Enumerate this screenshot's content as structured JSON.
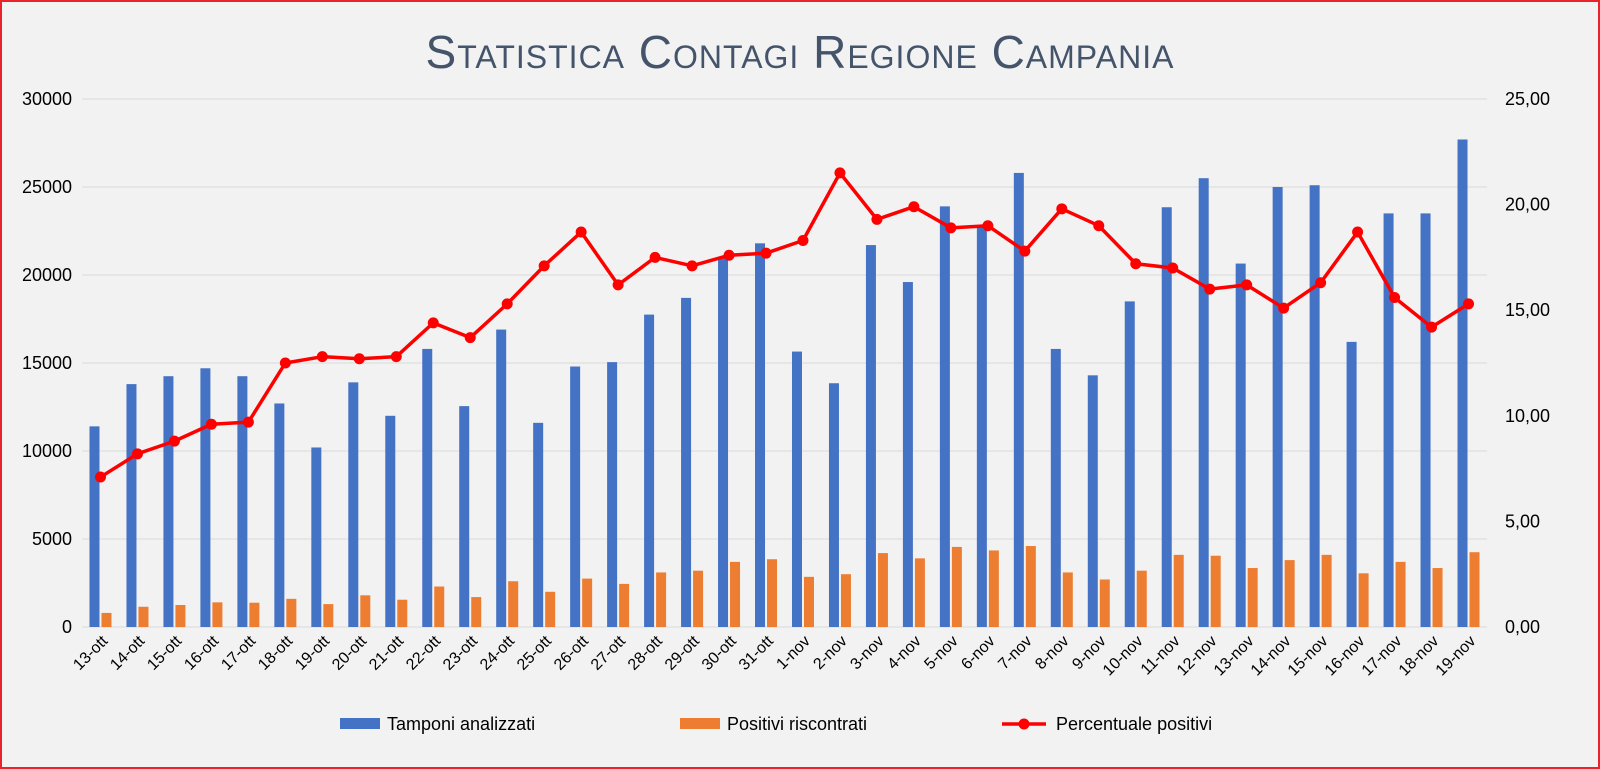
{
  "chart_data": {
    "type": "bar",
    "title": "Statistica Contagi Regione Campania",
    "categories": [
      "13-ott",
      "14-ott",
      "15-ott",
      "16-ott",
      "17-ott",
      "18-ott",
      "19-ott",
      "20-ott",
      "21-ott",
      "22-ott",
      "23-ott",
      "24-ott",
      "25-ott",
      "26-ott",
      "27-ott",
      "28-ott",
      "29-ott",
      "30-ott",
      "31-ott",
      "1-nov",
      "2-nov",
      "3-nov",
      "4-nov",
      "5-nov",
      "6-nov",
      "7-nov",
      "8-nov",
      "9-nov",
      "10-nov",
      "11-nov",
      "12-nov",
      "13-nov",
      "14-nov",
      "15-nov",
      "16-nov",
      "17-nov",
      "18-nov",
      "19-nov"
    ],
    "series": [
      {
        "name": "Tamponi analizzati",
        "type": "bar",
        "axis": "left",
        "color": "#4472c4",
        "values": [
          11400,
          13800,
          14250,
          14700,
          14250,
          12700,
          10200,
          13900,
          12000,
          15800,
          12550,
          16900,
          11600,
          14800,
          15050,
          17750,
          18700,
          21050,
          21800,
          15650,
          13850,
          21700,
          19600,
          23900,
          22800,
          25800,
          15800,
          14300,
          18500,
          23850,
          25500,
          20650,
          25000,
          25100,
          16200,
          23500,
          23500,
          27700
        ]
      },
      {
        "name": "Positivi riscontrati",
        "type": "bar",
        "axis": "left",
        "color": "#ed7d31",
        "values": [
          800,
          1150,
          1250,
          1400,
          1380,
          1600,
          1300,
          1800,
          1550,
          2300,
          1700,
          2600,
          2000,
          2750,
          2450,
          3100,
          3200,
          3700,
          3850,
          2850,
          3000,
          4200,
          3900,
          4550,
          4350,
          4600,
          3100,
          2700,
          3200,
          4100,
          4050,
          3350,
          3800,
          4100,
          3050,
          3700,
          3350,
          4250
        ]
      },
      {
        "name": "Percentuale positivi",
        "type": "line",
        "axis": "right",
        "color": "#ff0000",
        "values": [
          7.1,
          8.2,
          8.8,
          9.6,
          9.7,
          12.5,
          12.8,
          12.7,
          12.8,
          14.4,
          13.7,
          15.3,
          17.1,
          18.7,
          16.2,
          17.5,
          17.1,
          17.6,
          17.7,
          18.3,
          21.5,
          19.3,
          19.9,
          18.9,
          19.0,
          17.8,
          19.8,
          19.0,
          17.2,
          17.0,
          16.0,
          16.2,
          15.1,
          16.3,
          18.7,
          15.6,
          14.2,
          15.3
        ]
      }
    ],
    "y_left": {
      "ylim": [
        0,
        30000
      ],
      "ticks": [
        "0",
        "5000",
        "10000",
        "15000",
        "20000",
        "25000",
        "30000"
      ]
    },
    "y_right": {
      "ylim": [
        0,
        25
      ],
      "ticks": [
        "0,00",
        "5,00",
        "10,00",
        "15,00",
        "20,00",
        "25,00"
      ]
    },
    "grid": true,
    "legend_position": "bottom",
    "legend": [
      "Tamponi analizzati",
      "Positivi riscontrati",
      "Percentuale positivi"
    ]
  }
}
